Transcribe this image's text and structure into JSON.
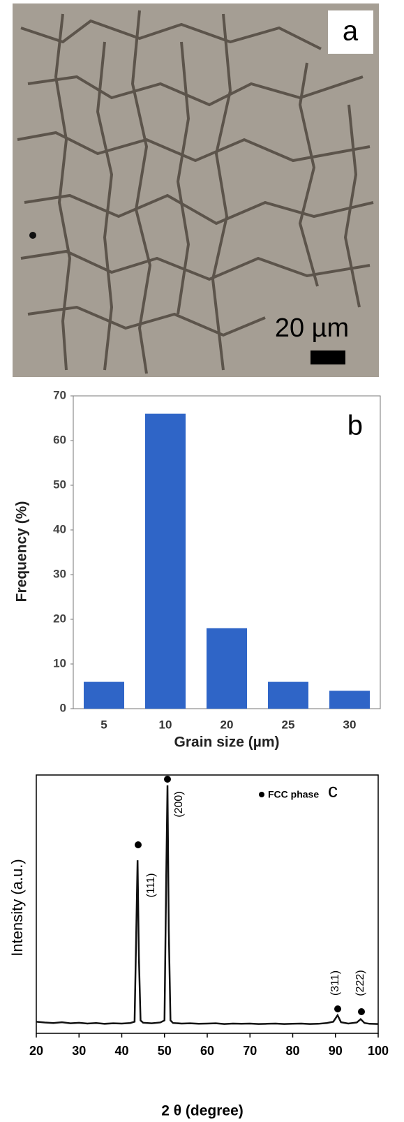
{
  "chart_data": [
    {
      "type": "image",
      "panel_label": "a",
      "scale_bar_label": "20 µm"
    },
    {
      "type": "bar",
      "panel_label": "b",
      "x_label": "Grain size (µm)",
      "y_label": "Frequency (%)",
      "categories": [
        "5",
        "10",
        "20",
        "25",
        "30"
      ],
      "values": [
        6,
        66,
        18,
        6,
        4
      ],
      "color": "#2f65c7",
      "ylim": [
        0,
        70
      ],
      "yticks": [
        0,
        10,
        20,
        30,
        40,
        50,
        60,
        70
      ],
      "grid": false
    },
    {
      "type": "line",
      "panel_label": "c",
      "x_label": "2 θ (degree)",
      "y_label": "Intensity (a.u.)",
      "legend": "FCC phase",
      "annotations": [
        "(111)",
        "(200)",
        "(311)",
        "(222)"
      ],
      "x": [
        20,
        22,
        24,
        26,
        28,
        30,
        32,
        34,
        36,
        38,
        40,
        42,
        43,
        43.4,
        43.7,
        44.0,
        44.4,
        45,
        47,
        49,
        50,
        50.4,
        50.7,
        51.0,
        51.4,
        52,
        54,
        56,
        58,
        60,
        62,
        64,
        66,
        68,
        70,
        72,
        74,
        76,
        78,
        80,
        82,
        84,
        86,
        88,
        89.5,
        90.5,
        91.3,
        93,
        95,
        95.9,
        96.8,
        98,
        100
      ],
      "series": [
        {
          "name": "FCC phase",
          "color": "#111111",
          "values": [
            4.5,
            4.2,
            4.0,
            4.3,
            3.9,
            4.1,
            3.8,
            4.0,
            3.7,
            3.9,
            3.8,
            4.0,
            4.5,
            40,
            67,
            30,
            5,
            4.1,
            3.9,
            4.2,
            5,
            60,
            96,
            40,
            5,
            4.0,
            3.8,
            3.9,
            3.7,
            3.8,
            3.9,
            3.6,
            3.8,
            3.7,
            3.8,
            3.6,
            3.7,
            3.8,
            3.6,
            3.7,
            3.8,
            3.6,
            3.7,
            4.0,
            4.5,
            7,
            4.3,
            3.8,
            4.2,
            5.5,
            4.0,
            3.7,
            3.6
          ]
        }
      ],
      "xlim": [
        20,
        100
      ],
      "xticks": [
        20,
        30,
        40,
        50,
        60,
        70,
        80,
        90,
        100
      ],
      "ylim": [
        0,
        100
      ]
    }
  ]
}
